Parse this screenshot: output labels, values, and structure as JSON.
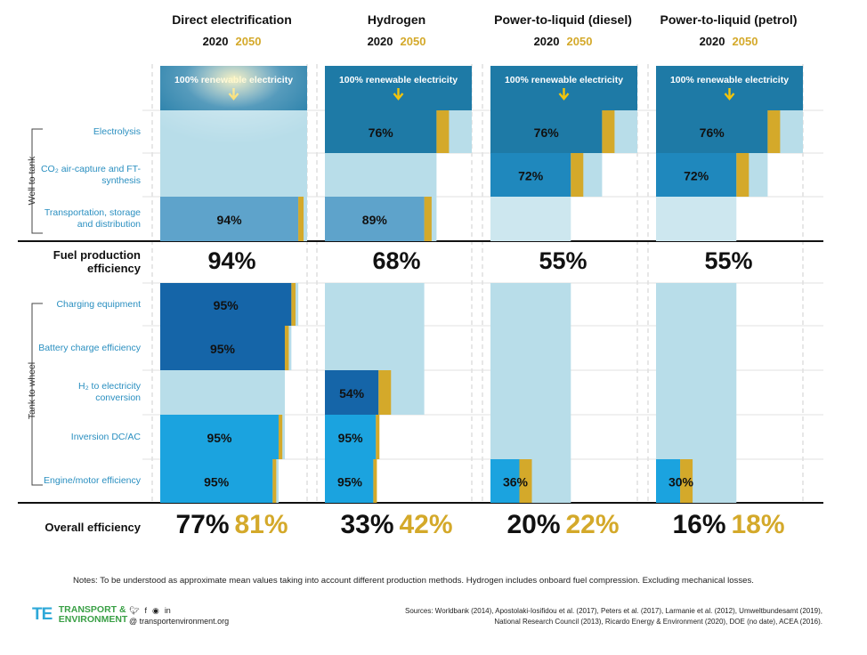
{
  "chart_data": {
    "type": "bar",
    "columns": [
      {
        "title": "Direct electrification",
        "year_a": "2020",
        "year_b": "2050"
      },
      {
        "title": "Hydrogen",
        "year_a": "2020",
        "year_b": "2050"
      },
      {
        "title": "Power-to-liquid (diesel)",
        "year_a": "2020",
        "year_b": "2050"
      },
      {
        "title": "Power-to-liquid (petrol)",
        "year_a": "2020",
        "year_b": "2050"
      }
    ],
    "source_label": "100% renewable electricity",
    "groups": [
      {
        "name": "Well to tank",
        "rows": [
          "Electrolysis",
          "CO₂ air-capture and FT-synthesis",
          "Transportation, storage and distribution"
        ]
      },
      {
        "name": "Tank to wheel",
        "rows": [
          "Charging equipment",
          "Battery charge efficiency",
          "H₂ to electricity conversion",
          "Inversion DC/AC",
          "Engine/motor efficiency"
        ]
      }
    ],
    "row_labels": {
      "electrolysis": "Electrolysis",
      "co2": "CO₂ air-capture and FT-synthesis",
      "transport": "Transportation, storage and distribution",
      "charging": "Charging equipment",
      "battery": "Battery charge efficiency",
      "h2": "H₂ to electricity conversion",
      "inversion": "Inversion DC/AC",
      "engine": "Engine/motor efficiency"
    },
    "stages": {
      "Direct electrification": {
        "transport": 94,
        "charging": 95,
        "battery": 95,
        "inversion": 95,
        "engine": 95
      },
      "Hydrogen": {
        "electrolysis": 76,
        "transport": 89,
        "h2": 54,
        "inversion": 95,
        "engine": 95
      },
      "Power-to-liquid (diesel)": {
        "electrolysis": 76,
        "co2": 72,
        "engine": 36
      },
      "Power-to-liquid (petrol)": {
        "electrolysis": 76,
        "co2": 72,
        "engine": 30
      }
    },
    "stage_labels": {
      "Direct electrification": {
        "transport": "94%",
        "charging": "95%",
        "battery": "95%",
        "inversion": "95%",
        "engine": "95%"
      },
      "Hydrogen": {
        "electrolysis": "76%",
        "transport": "89%",
        "h2": "54%",
        "inversion": "95%",
        "engine": "95%"
      },
      "Power-to-liquid (diesel)": {
        "electrolysis": "76%",
        "co2": "72%",
        "engine": "36%"
      },
      "Power-to-liquid (petrol)": {
        "electrolysis": "76%",
        "co2": "72%",
        "engine": "30%"
      }
    },
    "fuel_production_label": "Fuel production efficiency",
    "fuel_production": [
      "94%",
      "68%",
      "55%",
      "55%"
    ],
    "overall_label": "Overall efficiency",
    "overall_2020": [
      "77%",
      "33%",
      "20%",
      "16%"
    ],
    "overall_2050": [
      "81%",
      "42%",
      "22%",
      "18%"
    ],
    "colors": {
      "top_band": "#1e7aa6",
      "light": "#b8dde9",
      "pale": "#cde7ef",
      "mid": "#5ea3cb",
      "dark": "#1565a8",
      "bright": "#1ba3df",
      "gold": "#d4a92a",
      "arrow": "#f2c40c"
    }
  },
  "footer": {
    "notes": "Notes: To be understood as approximate mean values taking into account different production methods. Hydrogen includes onboard fuel compression. Excluding mechanical losses.",
    "sources_line1": "Sources: Worldbank (2014), Apostolaki-Iosifidou et al. (2017), Peters et al. (2017), Larmanie et al. (2012), Umweltbundesamt (2019),",
    "sources_line2": "National Research Council (2013), Ricardo Energy & Environment (2020), DOE (no date), ACEA (2016).",
    "org_line1": "TRANSPORT &",
    "org_line2": "ENVIRONMENT",
    "logo_mark": "TE",
    "website": "@ transportenvironment.org",
    "social_icons": [
      "twitter-icon",
      "facebook-icon",
      "instagram-icon",
      "linkedin-icon"
    ]
  }
}
